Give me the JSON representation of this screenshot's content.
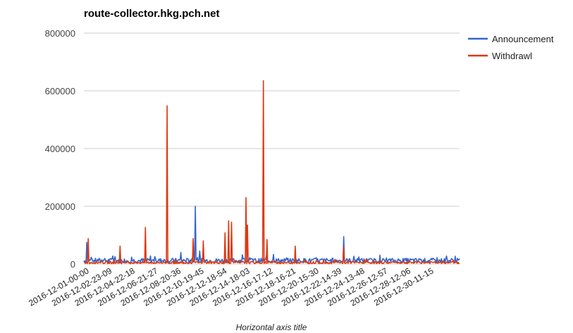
{
  "chart_data": {
    "type": "line",
    "title": "route-collector.hkg.pch.net",
    "xlabel": "Horizontal axis title",
    "ylabel": "",
    "ylim": [
      0,
      800000
    ],
    "yticks": [
      0,
      200000,
      400000,
      600000,
      800000
    ],
    "grid": true,
    "legend_position": "right",
    "x_ticks": [
      "2016-12-01-00-00",
      "2016-12-02-23-09",
      "2016-12-04-22-18",
      "2016-12-06-21-27",
      "2016-12-08-20-36",
      "2016-12-10-19-45",
      "2016-12-12-18-54",
      "2016-12-14-18-03",
      "2016-12-16-17-12",
      "2016-12-18-16-21",
      "2016-12-20-15-30",
      "2016-12-22-14-39",
      "2016-12-24-13-48",
      "2016-12-26-12-57",
      "2016-12-28-12-06",
      "2016-12-30-11-15"
    ],
    "x_range": [
      "2016-12-01-00-00",
      "2016-12-31-23-59"
    ],
    "series": [
      {
        "name": "Announcement",
        "color": "#3366cc",
        "baseline": 12000,
        "noise": 8000,
        "spikes": [
          {
            "x": "2016-12-01-06-00",
            "y": 75000
          },
          {
            "x": "2016-12-03-10-00",
            "y": 28000
          },
          {
            "x": "2016-12-06-12-00",
            "y": 28000
          },
          {
            "x": "2016-12-09-00-00",
            "y": 40000
          },
          {
            "x": "2016-12-10-05-00",
            "y": 200000
          },
          {
            "x": "2016-12-10-14-00",
            "y": 45000
          },
          {
            "x": "2016-12-14-02-00",
            "y": 32000
          },
          {
            "x": "2016-12-16-15-00",
            "y": 33000
          },
          {
            "x": "2016-12-22-10-00",
            "y": 95000
          },
          {
            "x": "2016-12-30-22-00",
            "y": 28000
          }
        ]
      },
      {
        "name": "Withdrawl",
        "color": "#dc3912",
        "baseline": 5000,
        "noise": 4000,
        "spikes": [
          {
            "x": "2016-12-01-08-00",
            "y": 88000
          },
          {
            "x": "2016-12-03-23-00",
            "y": 62000
          },
          {
            "x": "2016-12-06-02-00",
            "y": 127000
          },
          {
            "x": "2016-12-07-21-00",
            "y": 548000
          },
          {
            "x": "2016-12-10-00-00",
            "y": 88000
          },
          {
            "x": "2016-12-10-20-00",
            "y": 80000
          },
          {
            "x": "2016-12-12-16-00",
            "y": 108000
          },
          {
            "x": "2016-12-12-22-00",
            "y": 150000
          },
          {
            "x": "2016-12-13-05-00",
            "y": 145000
          },
          {
            "x": "2016-12-14-09-00",
            "y": 230000
          },
          {
            "x": "2016-12-14-12-00",
            "y": 135000
          },
          {
            "x": "2016-12-15-19-00",
            "y": 635000
          },
          {
            "x": "2016-12-16-02-00",
            "y": 85000
          },
          {
            "x": "2016-12-18-11-00",
            "y": 62000
          },
          {
            "x": "2016-12-22-10-00",
            "y": 60000
          }
        ]
      }
    ]
  }
}
